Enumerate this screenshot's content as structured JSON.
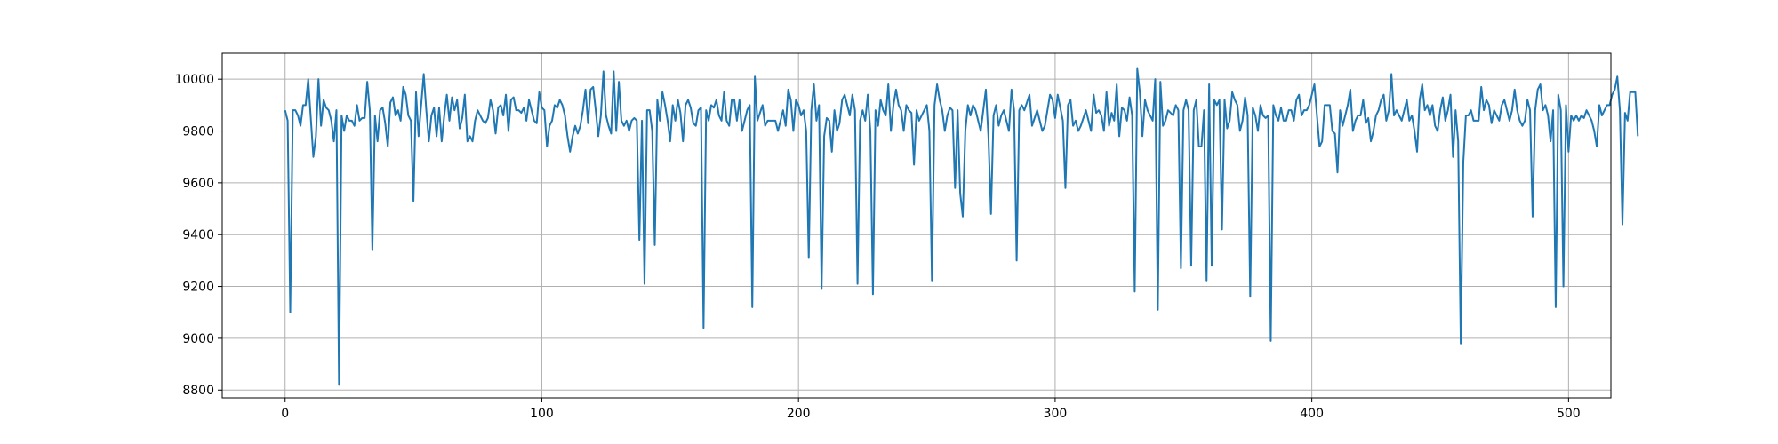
{
  "chart_data": {
    "type": "line",
    "title": "",
    "xlabel": "",
    "ylabel": "",
    "xlim": [
      -24.5,
      516.5
    ],
    "ylim": [
      8770,
      10100
    ],
    "xticks": [
      0,
      100,
      200,
      300,
      400,
      500
    ],
    "yticks": [
      8800,
      9000,
      9200,
      9400,
      9600,
      9800,
      10000
    ],
    "grid": true,
    "line_color": "#1f77b4",
    "series": [
      {
        "values": [
          9880,
          9840,
          9100,
          9880,
          9880,
          9860,
          9820,
          9900,
          9900,
          10000,
          9850,
          9700,
          9780,
          10000,
          9820,
          9920,
          9890,
          9880,
          9840,
          9760,
          9880,
          8820,
          9860,
          9800,
          9860,
          9840,
          9840,
          9820,
          9900,
          9840,
          9850,
          9850,
          9990,
          9880,
          9340,
          9860,
          9760,
          9880,
          9890,
          9830,
          9740,
          9910,
          9930,
          9860,
          9880,
          9840,
          9970,
          9940,
          9860,
          9840,
          9530,
          9950,
          9780,
          9900,
          10020,
          9880,
          9760,
          9860,
          9890,
          9780,
          9890,
          9760,
          9860,
          9940,
          9840,
          9930,
          9880,
          9920,
          9810,
          9850,
          9940,
          9760,
          9780,
          9760,
          9840,
          9880,
          9860,
          9840,
          9830,
          9850,
          9920,
          9880,
          9790,
          9890,
          9900,
          9860,
          9940,
          9800,
          9920,
          9930,
          9880,
          9880,
          9870,
          9890,
          9840,
          9920,
          9880,
          9840,
          9830,
          9950,
          9890,
          9880,
          9740,
          9820,
          9840,
          9900,
          9890,
          9920,
          9900,
          9860,
          9780,
          9720,
          9780,
          9820,
          9790,
          9820,
          9880,
          9960,
          9830,
          9960,
          9970,
          9880,
          9780,
          9860,
          10030,
          9860,
          9820,
          9790,
          10030,
          9800,
          9990,
          9840,
          9820,
          9840,
          9800,
          9840,
          9850,
          9840,
          9380,
          9840,
          9210,
          9880,
          9880,
          9800,
          9360,
          9920,
          9840,
          9950,
          9900,
          9840,
          9760,
          9900,
          9840,
          9920,
          9870,
          9760,
          9900,
          9920,
          9890,
          9830,
          9820,
          9880,
          9890,
          9040,
          9880,
          9840,
          9900,
          9890,
          9920,
          9860,
          9840,
          9950,
          9840,
          9820,
          9920,
          9920,
          9840,
          9920,
          9800,
          9840,
          9880,
          9900,
          9120,
          10010,
          9840,
          9870,
          9900,
          9820,
          9840,
          9840,
          9840,
          9840,
          9800,
          9840,
          9880,
          9820,
          9960,
          9920,
          9800,
          9920,
          9900,
          9860,
          9880,
          9800,
          9310,
          9880,
          9980,
          9840,
          9900,
          9190,
          9780,
          9850,
          9840,
          9720,
          9880,
          9800,
          9830,
          9920,
          9940,
          9900,
          9860,
          9940,
          9880,
          9210,
          9840,
          9880,
          9840,
          9940,
          9800,
          9170,
          9880,
          9820,
          9920,
          9880,
          9860,
          9980,
          9800,
          9900,
          9960,
          9900,
          9880,
          9800,
          9900,
          9880,
          9870,
          9670,
          9880,
          9840,
          9860,
          9880,
          9900,
          9800,
          9220,
          9900,
          9980,
          9920,
          9880,
          9800,
          9860,
          9890,
          9880,
          9580,
          9880,
          9560,
          9470,
          9800,
          9900,
          9860,
          9900,
          9880,
          9840,
          9800,
          9880,
          9960,
          9780,
          9480,
          9860,
          9900,
          9820,
          9860,
          9880,
          9840,
          9800,
          9960,
          9880,
          9300,
          9880,
          9900,
          9880,
          9910,
          9940,
          9820,
          9850,
          9880,
          9840,
          9800,
          9820,
          9880,
          9940,
          9920,
          9850,
          9940,
          9890,
          9840,
          9580,
          9900,
          9920,
          9820,
          9840,
          9800,
          9820,
          9850,
          9880,
          9840,
          9800,
          9940,
          9870,
          9880,
          9860,
          9800,
          9950,
          9820,
          9870,
          9840,
          9980,
          9780,
          9890,
          9880,
          9840,
          9930,
          9860,
          9180,
          10040,
          9950,
          9780,
          9920,
          9880,
          9860,
          9840,
          10000,
          9110,
          9990,
          9820,
          9840,
          9880,
          9870,
          9860,
          9900,
          9880,
          9270,
          9880,
          9920,
          9880,
          9280,
          9880,
          9920,
          9740,
          9740,
          9880,
          9220,
          9980,
          9280,
          9920,
          9900,
          9920,
          9420,
          9920,
          9810,
          9840,
          9950,
          9920,
          9900,
          9800,
          9840,
          9930,
          9860,
          9160,
          9890,
          9860,
          9800,
          9900,
          9860,
          9850,
          9860,
          8990,
          9900,
          9860,
          9840,
          9890,
          9840,
          9840,
          9880,
          9880,
          9840,
          9920,
          9940,
          9860,
          9880,
          9880,
          9900,
          9940,
          9980,
          9860,
          9740,
          9760,
          9900,
          9900,
          9900,
          9800,
          9790,
          9640,
          9880,
          9820,
          9860,
          9900,
          9960,
          9800,
          9840,
          9860,
          9860,
          9920,
          9830,
          9850,
          9760,
          9800,
          9860,
          9880,
          9920,
          9940,
          9840,
          9880,
          10020,
          9860,
          9880,
          9860,
          9840,
          9880,
          9920,
          9840,
          9860,
          9800,
          9720,
          9920,
          9980,
          9880,
          9900,
          9860,
          9900,
          9820,
          9800,
          9880,
          9930,
          9840,
          9880,
          9940,
          9700,
          9880,
          9760,
          8980,
          9680,
          9860,
          9860,
          9880,
          9840,
          9840,
          9840,
          9970,
          9880,
          9920,
          9900,
          9830,
          9880,
          9860,
          9840,
          9900,
          9920,
          9880,
          9840,
          9880,
          9960,
          9880,
          9840,
          9820,
          9840,
          9920,
          9880,
          9470,
          9880,
          9960,
          9980,
          9880,
          9900,
          9860,
          9760,
          9880,
          9120,
          9940,
          9880,
          9200,
          9900,
          9720,
          9860,
          9840,
          9860,
          9840,
          9860,
          9850,
          9880,
          9860,
          9840,
          9800,
          9740,
          9900,
          9860,
          9880,
          9900,
          9900,
          9940,
          9960,
          10010,
          9880,
          9440,
          9870,
          9840,
          9950,
          9950,
          9950,
          9780
        ]
      }
    ]
  }
}
